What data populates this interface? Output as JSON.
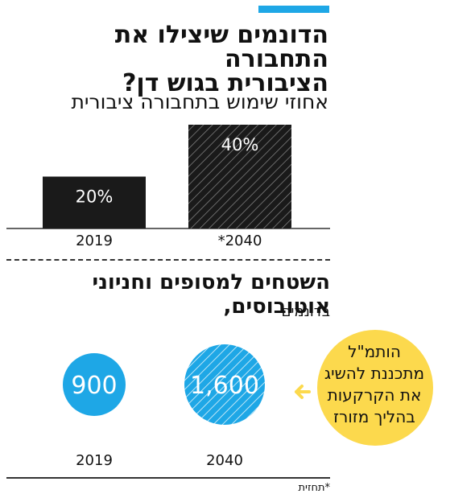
{
  "header": {
    "title_line1": "הדונמים שיצילו את התחבורה",
    "title_line2": "הציבורית בגוש דן?"
  },
  "colors": {
    "accent": "#1ea7e6",
    "bar_dark": "#1a1a1a",
    "callout": "#fcd94d",
    "text": "#111111"
  },
  "chart_data": [
    {
      "type": "bar",
      "title": "אחוזי שימוש בתחבורה ציבורית",
      "categories": [
        "2019",
        "*2040"
      ],
      "values": [
        20,
        40
      ],
      "value_labels": [
        "20%",
        "40%"
      ],
      "ylim": [
        0,
        40
      ],
      "styles": [
        "solid",
        "hatched"
      ]
    },
    {
      "type": "bubble",
      "title": "השטחים למסופים וחניוני אוטובוסים,",
      "unit": "בדונמים",
      "categories": [
        "2019",
        "2040"
      ],
      "values": [
        900,
        1600
      ],
      "value_labels": [
        "900",
        "1,600"
      ],
      "styles": [
        "solid",
        "hatched"
      ]
    }
  ],
  "callout": {
    "lines": [
      "הותמ\"ל",
      "מתכננת להשיג",
      "את הקרקעות",
      "בהליך מזורז"
    ],
    "icon": "arrow-left-icon"
  },
  "footnote": "*תחזית"
}
